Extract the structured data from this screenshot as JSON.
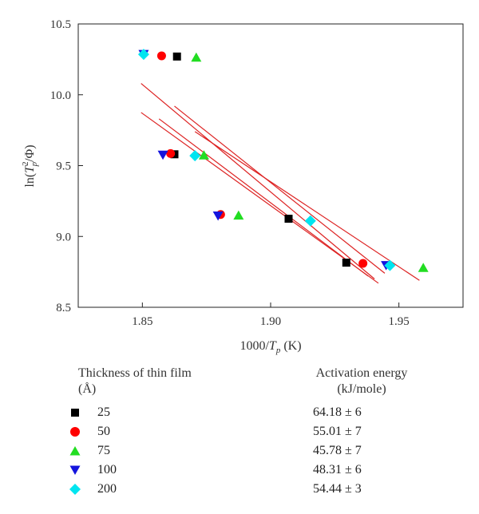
{
  "chart_data": {
    "type": "scatter",
    "xlabel": "1000/Tp (K)",
    "ylabel": "ln(Tp²/Φ)",
    "xlim": [
      1.825,
      1.975
    ],
    "ylim": [
      8.5,
      10.5
    ],
    "xticks": [
      "1.85",
      "1.90",
      "1.95"
    ],
    "yticks": [
      "8.5",
      "9.0",
      "9.5",
      "10.0",
      "10.5"
    ],
    "xtick_values": [
      1.85,
      1.9,
      1.95
    ],
    "ytick_values": [
      8.5,
      9.0,
      9.5,
      10.0,
      10.5
    ],
    "grid": false,
    "series": [
      {
        "name": "25",
        "marker": "square",
        "color": "#000000",
        "points": [
          [
            1.8635,
            10.27
          ],
          [
            1.8625,
            9.58
          ],
          [
            1.907,
            9.125
          ],
          [
            1.9295,
            8.815
          ]
        ]
      },
      {
        "name": "50",
        "marker": "circle",
        "color": "#ff0000",
        "points": [
          [
            1.8575,
            10.275
          ],
          [
            1.861,
            9.585
          ],
          [
            1.8805,
            9.155
          ],
          [
            1.936,
            8.81
          ]
        ]
      },
      {
        "name": "75",
        "marker": "triangle-up",
        "color": "#22dd22",
        "points": [
          [
            1.871,
            10.265
          ],
          [
            1.874,
            9.575
          ],
          [
            1.8875,
            9.15
          ],
          [
            1.9595,
            8.78
          ]
        ]
      },
      {
        "name": "100",
        "marker": "triangle-down",
        "color": "#1515dd",
        "points": [
          [
            1.8505,
            10.285
          ],
          [
            1.858,
            9.575
          ],
          [
            1.8795,
            9.145
          ],
          [
            1.945,
            8.795
          ]
        ]
      },
      {
        "name": "200",
        "marker": "diamond",
        "color": "#00e5f0",
        "points": [
          [
            1.8505,
            10.285
          ],
          [
            1.8705,
            9.57
          ],
          [
            1.9155,
            9.11
          ],
          [
            1.9465,
            8.795
          ]
        ]
      }
    ],
    "fit_lines": {
      "color": "#dd2222",
      "lines": [
        [
          [
            1.8495,
            10.08
          ],
          [
            1.9405,
            8.7
          ]
        ],
        [
          [
            1.8495,
            9.875
          ],
          [
            1.942,
            8.67
          ]
        ],
        [
          [
            1.8625,
            9.92
          ],
          [
            1.9445,
            8.74
          ]
        ],
        [
          [
            1.8705,
            9.74
          ],
          [
            1.958,
            8.69
          ]
        ],
        [
          [
            1.8565,
            9.83
          ],
          [
            1.938,
            8.72
          ]
        ]
      ]
    }
  },
  "legend": {
    "col1_header": "Thickness of thin film",
    "col1_unit": "(Å)",
    "col2_header": "Activation energy",
    "col2_unit": "(kJ/mole)",
    "rows": [
      {
        "thickness": "25",
        "energy": "64.18 ± 6"
      },
      {
        "thickness": "50",
        "energy": "55.01 ± 7"
      },
      {
        "thickness": "75",
        "energy": "45.78 ± 7"
      },
      {
        "thickness": "100",
        "energy": "48.31 ± 6"
      },
      {
        "thickness": "200",
        "energy": "54.44 ± 3"
      }
    ]
  }
}
